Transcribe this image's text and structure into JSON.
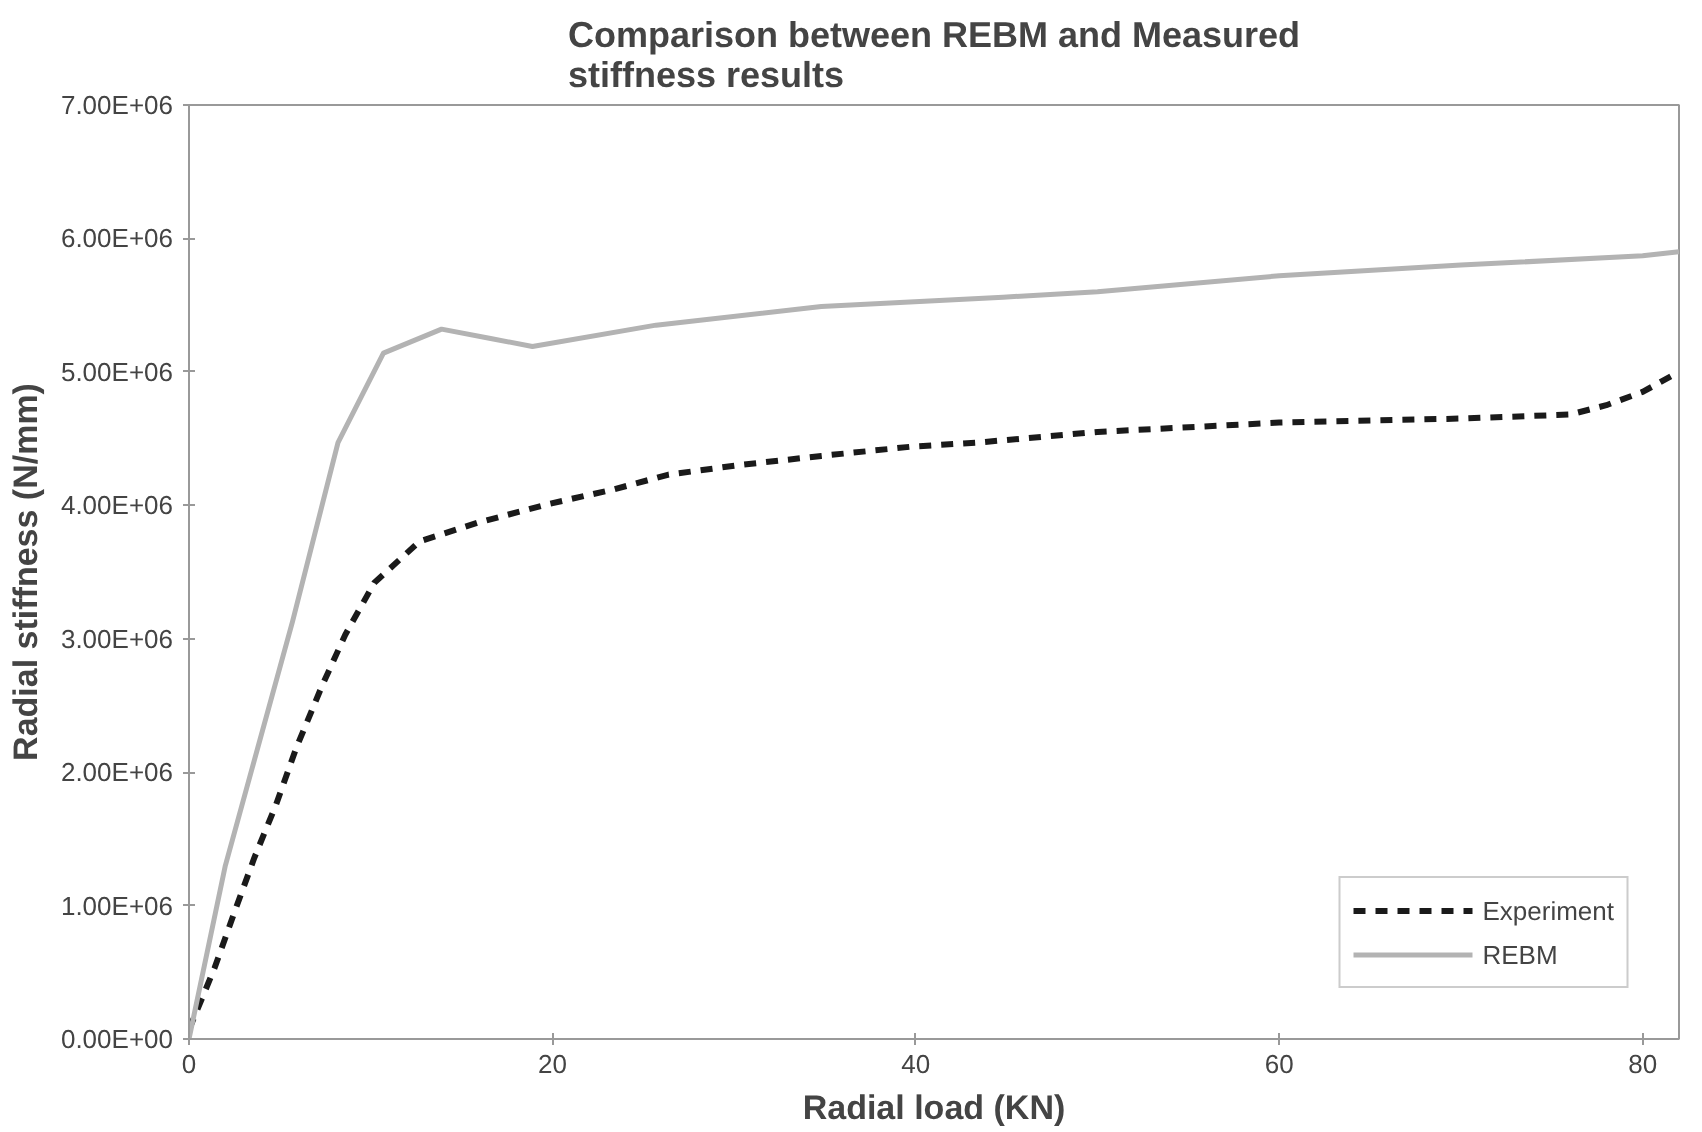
{
  "chart_data": {
    "type": "line",
    "title": "Comparison between REBM and Measured stiffness results",
    "xlabel": "Radial load (KN)",
    "ylabel": "Radial stiffness (N/mm)",
    "xlim": [
      0,
      82
    ],
    "xticks": [
      0,
      20,
      40,
      60,
      80
    ],
    "ylim": [
      0,
      7000000
    ],
    "yticks": [
      {
        "value": 0,
        "label": "0.00E+00"
      },
      {
        "value": 1000000,
        "label": "1.00E+06"
      },
      {
        "value": 2000000,
        "label": "2.00E+06"
      },
      {
        "value": 3000000,
        "label": "3.00E+06"
      },
      {
        "value": 4000000,
        "label": "4.00E+06"
      },
      {
        "value": 5000000,
        "label": "5.00E+06"
      },
      {
        "value": 6000000,
        "label": "6.00E+06"
      },
      {
        "value": 7000000,
        "label": "7.00E+06"
      }
    ],
    "grid": false,
    "legend": "bottom right",
    "marker": "none",
    "series": [
      {
        "name": "Experiment",
        "color": "#1a1a1a",
        "line_style": "dashed",
        "x": [
          0,
          1.4,
          2.5,
          3.6,
          4.8,
          5.9,
          7.3,
          8.6,
          10.2,
          12.7,
          15.9,
          19.8,
          23.4,
          26.4,
          30.2,
          34.8,
          39.8,
          43.4,
          50,
          60,
          70,
          76,
          78,
          80,
          82
        ],
        "values": [
          70000,
          530000,
          950000,
          1360000,
          1760000,
          2180000,
          2640000,
          3030000,
          3420000,
          3730000,
          3870000,
          4010000,
          4120000,
          4230000,
          4300000,
          4370000,
          4440000,
          4470000,
          4550000,
          4620000,
          4650000,
          4680000,
          4750000,
          4850000,
          5000000
        ]
      },
      {
        "name": "REBM",
        "color": "#b3b3b3",
        "line_style": "solid",
        "x": [
          0,
          2,
          5.7,
          8.2,
          10.7,
          13.9,
          16.6,
          18.9,
          25.7,
          34.8,
          44.8,
          50,
          60,
          70,
          80,
          82
        ],
        "values": [
          0,
          1300000,
          3130000,
          4470000,
          5140000,
          5320000,
          5250000,
          5190000,
          5350000,
          5490000,
          5560000,
          5600000,
          5720000,
          5800000,
          5870000,
          5900000
        ]
      }
    ]
  }
}
